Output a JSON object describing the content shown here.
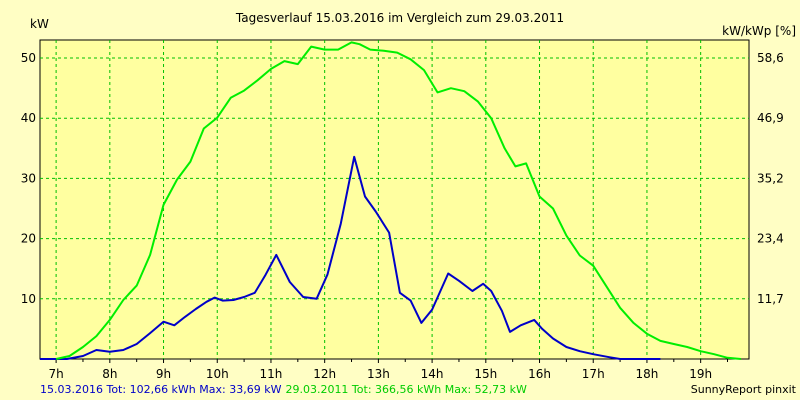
{
  "chart_data": {
    "type": "line",
    "title": "Tagesverlauf 15.03.2016 im Vergleich zum 29.03.2011",
    "ylabel_left": "kW",
    "ylabel_right": "kW/kWp [%]",
    "x_ticks": [
      "7h",
      "8h",
      "9h",
      "10h",
      "11h",
      "12h",
      "13h",
      "14h",
      "15h",
      "16h",
      "17h",
      "18h",
      "19h"
    ],
    "y_ticks_left": [
      "10",
      "20",
      "30",
      "40",
      "50"
    ],
    "y_ticks_right": [
      "11,7",
      "23,4",
      "35,2",
      "46,9",
      "58,6"
    ],
    "xlim": [
      6.7,
      19.9
    ],
    "ylim": [
      0,
      53
    ],
    "grid": true,
    "series": [
      {
        "name": "15.03.2016",
        "color": "#0000c8",
        "points": [
          [
            6.7,
            0
          ],
          [
            7.2,
            0
          ],
          [
            7.5,
            0.5
          ],
          [
            7.75,
            1.5
          ],
          [
            8.0,
            1.2
          ],
          [
            8.25,
            1.5
          ],
          [
            8.5,
            2.5
          ],
          [
            8.75,
            4.3
          ],
          [
            9.0,
            6.2
          ],
          [
            9.2,
            5.6
          ],
          [
            9.4,
            7.0
          ],
          [
            9.6,
            8.3
          ],
          [
            9.8,
            9.5
          ],
          [
            9.95,
            10.2
          ],
          [
            10.1,
            9.7
          ],
          [
            10.3,
            9.8
          ],
          [
            10.5,
            10.3
          ],
          [
            10.7,
            11.0
          ],
          [
            10.9,
            14.0
          ],
          [
            11.1,
            17.3
          ],
          [
            11.35,
            12.8
          ],
          [
            11.6,
            10.3
          ],
          [
            11.85,
            10.0
          ],
          [
            12.05,
            14.0
          ],
          [
            12.3,
            22.5
          ],
          [
            12.55,
            33.6
          ],
          [
            12.75,
            27.0
          ],
          [
            12.95,
            24.5
          ],
          [
            13.2,
            21.0
          ],
          [
            13.4,
            11.0
          ],
          [
            13.6,
            9.7
          ],
          [
            13.8,
            6.0
          ],
          [
            14.0,
            8.2
          ],
          [
            14.3,
            14.2
          ],
          [
            14.5,
            13.0
          ],
          [
            14.75,
            11.3
          ],
          [
            14.95,
            12.5
          ],
          [
            15.1,
            11.3
          ],
          [
            15.3,
            8.0
          ],
          [
            15.45,
            4.5
          ],
          [
            15.65,
            5.6
          ],
          [
            15.9,
            6.5
          ],
          [
            16.05,
            5.0
          ],
          [
            16.25,
            3.4
          ],
          [
            16.5,
            2.0
          ],
          [
            16.75,
            1.3
          ],
          [
            17.0,
            0.8
          ],
          [
            17.3,
            0.3
          ],
          [
            17.5,
            0
          ],
          [
            18.25,
            0
          ]
        ]
      },
      {
        "name": "29.03.2011",
        "color": "#00ee00",
        "points": [
          [
            7.0,
            0
          ],
          [
            7.25,
            0.5
          ],
          [
            7.5,
            2.0
          ],
          [
            7.75,
            3.8
          ],
          [
            8.0,
            6.5
          ],
          [
            8.25,
            9.8
          ],
          [
            8.5,
            12.2
          ],
          [
            8.75,
            17.3
          ],
          [
            9.0,
            25.6
          ],
          [
            9.25,
            29.8
          ],
          [
            9.5,
            32.8
          ],
          [
            9.75,
            38.3
          ],
          [
            10.0,
            40.1
          ],
          [
            10.25,
            43.4
          ],
          [
            10.5,
            44.6
          ],
          [
            10.75,
            46.3
          ],
          [
            11.0,
            48.2
          ],
          [
            11.25,
            49.5
          ],
          [
            11.5,
            49.0
          ],
          [
            11.75,
            51.9
          ],
          [
            12.0,
            51.4
          ],
          [
            12.25,
            51.4
          ],
          [
            12.5,
            52.6
          ],
          [
            12.65,
            52.3
          ],
          [
            12.85,
            51.4
          ],
          [
            13.1,
            51.2
          ],
          [
            13.35,
            50.9
          ],
          [
            13.6,
            49.8
          ],
          [
            13.85,
            48.0
          ],
          [
            14.1,
            44.3
          ],
          [
            14.35,
            45.0
          ],
          [
            14.6,
            44.5
          ],
          [
            14.85,
            42.8
          ],
          [
            15.1,
            40.0
          ],
          [
            15.35,
            35.0
          ],
          [
            15.55,
            32.0
          ],
          [
            15.75,
            32.5
          ],
          [
            16.0,
            27.0
          ],
          [
            16.25,
            25.0
          ],
          [
            16.5,
            20.5
          ],
          [
            16.75,
            17.2
          ],
          [
            17.0,
            15.5
          ],
          [
            17.25,
            12.0
          ],
          [
            17.5,
            8.5
          ],
          [
            17.75,
            6.0
          ],
          [
            18.0,
            4.2
          ],
          [
            18.25,
            3.0
          ],
          [
            18.5,
            2.5
          ],
          [
            18.75,
            2.0
          ],
          [
            19.0,
            1.3
          ],
          [
            19.25,
            0.8
          ],
          [
            19.5,
            0.2
          ],
          [
            19.75,
            0
          ]
        ]
      }
    ]
  },
  "legend": {
    "series1_text": "15.03.2016 Tot: 102,66 kWh Max: 33,69 kW",
    "series2_text": "29.03.2011 Tot: 366,56 kWh Max: 52,73 kW",
    "credit": "SunnyReport pinxit"
  }
}
